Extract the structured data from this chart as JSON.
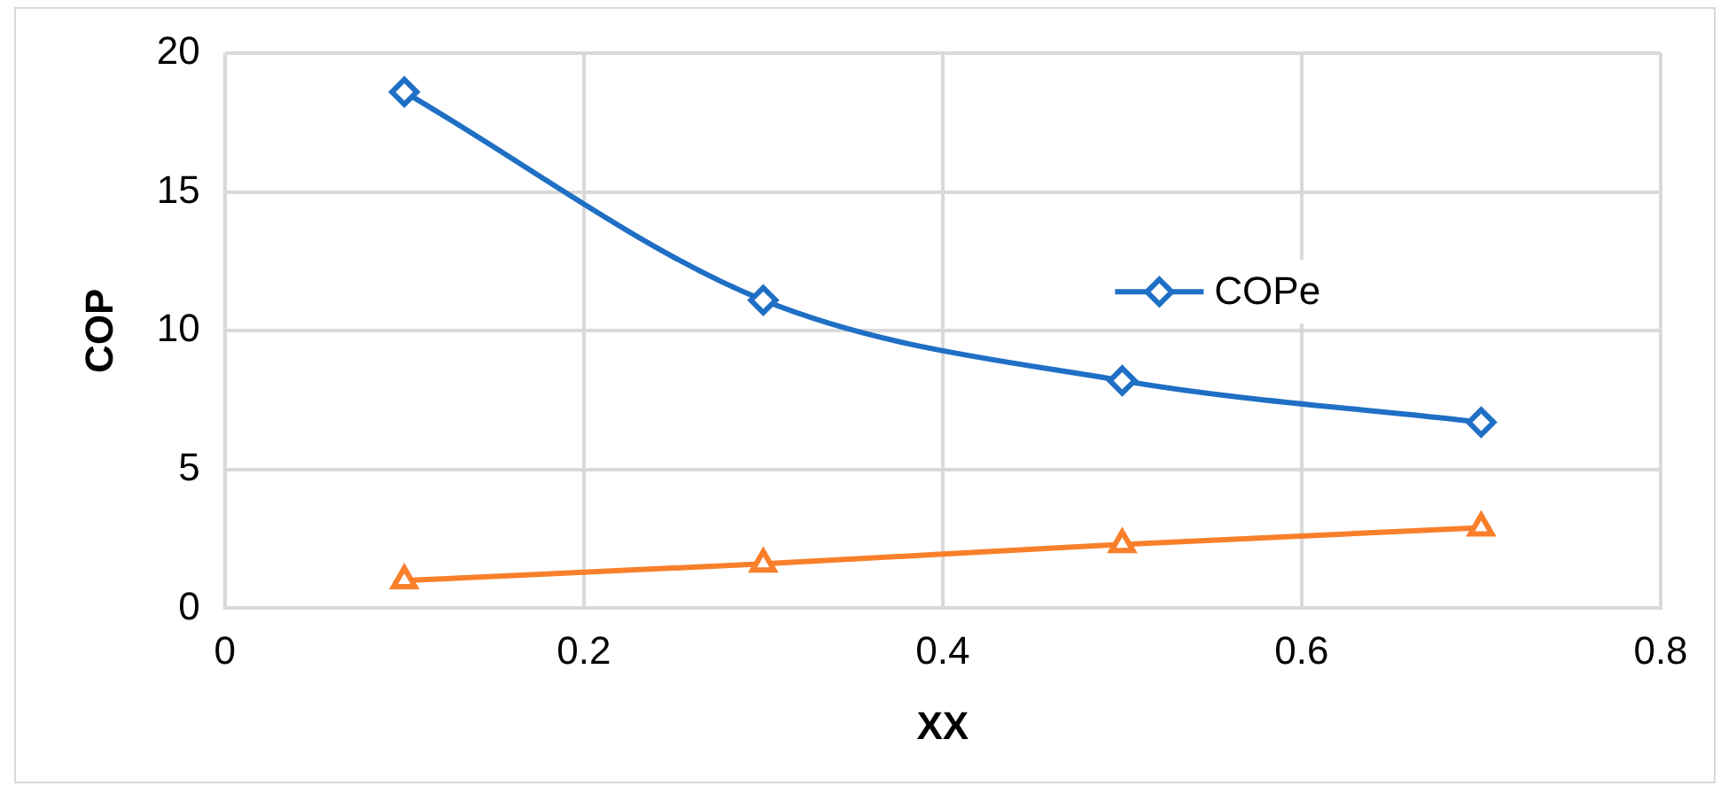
{
  "chart_data": {
    "type": "line",
    "xlabel": "XX",
    "ylabel": "COP",
    "x": [
      0.1,
      0.3,
      0.5,
      0.7
    ],
    "series": [
      {
        "name": "COPe",
        "color": "#1f6fc5",
        "marker": "diamond",
        "values": [
          18.6,
          11.1,
          8.2,
          6.7
        ]
      },
      {
        "color": "#f97f2a",
        "marker": "triangle",
        "values": [
          1.0,
          1.6,
          2.3,
          2.9
        ]
      }
    ],
    "xlim": [
      0,
      0.8
    ],
    "xticks": [
      0,
      0.2,
      0.4,
      0.6,
      0.8
    ],
    "ylim": [
      0,
      20
    ],
    "yticks": [
      0,
      5,
      10,
      15,
      20
    ],
    "grid": true,
    "legend": "right"
  }
}
